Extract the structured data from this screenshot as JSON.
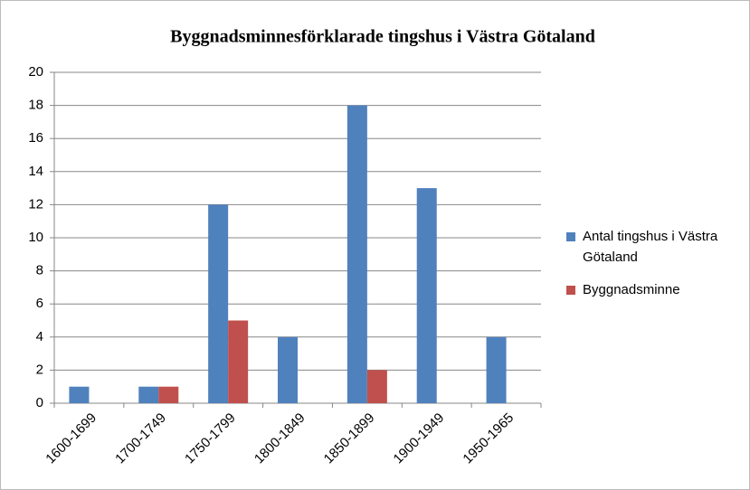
{
  "chart_data": {
    "type": "bar",
    "title": "Byggnadsminnesförklarade tingshus i Västra Götaland",
    "categories": [
      "1600-1699",
      "1700-1749",
      "1750-1799",
      "1800-1849",
      "1850-1899",
      "1900-1949",
      "1950-1965"
    ],
    "series": [
      {
        "name": "Antal tingshus i Västra Götaland",
        "color": "#4f81bd",
        "values": [
          1,
          1,
          12,
          4,
          18,
          13,
          4
        ]
      },
      {
        "name": "Byggnadsminne",
        "color": "#c0504d",
        "values": [
          0,
          1,
          5,
          0,
          2,
          0,
          0
        ]
      }
    ],
    "ylim": [
      0,
      20
    ],
    "yticks": [
      0,
      2,
      4,
      6,
      8,
      10,
      12,
      14,
      16,
      18,
      20
    ],
    "grid": true,
    "legend": "right"
  }
}
